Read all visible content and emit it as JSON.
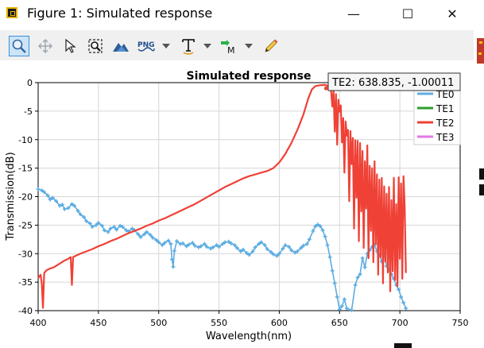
{
  "window": {
    "title": "Figure 1: Simulated response",
    "minimize_glyph": "—",
    "maximize_glyph": "☐",
    "close_glyph": "✕"
  },
  "toolbar": {
    "items": [
      {
        "name": "zoom-tool-button",
        "icon": "magnifier-icon",
        "active": true
      },
      {
        "name": "pan-tool-button",
        "icon": "move-arrows-icon",
        "active": false
      },
      {
        "name": "select-tool-button",
        "icon": "cursor-arrow-icon",
        "active": false
      },
      {
        "name": "zoom-fit-button",
        "icon": "zoom-fit-icon",
        "active": false
      },
      {
        "name": "chart-style-button",
        "icon": "mountain-chart-icon",
        "active": false
      },
      {
        "name": "export-png-button",
        "icon": "png-icon",
        "active": false
      },
      {
        "name": "text-annotation-button",
        "icon": "text-t-icon",
        "active": false
      },
      {
        "name": "marker-button",
        "icon": "marker-m-icon",
        "active": false
      },
      {
        "name": "draw-pen-button",
        "icon": "pencil-icon",
        "active": false
      }
    ],
    "png_label": "PNG",
    "marker_label": "M"
  },
  "chart_data": {
    "type": "line",
    "title": "Simulated response",
    "xlabel": "Wavelength(nm)",
    "ylabel": "Transmission(dB)",
    "xlim": [
      400,
      750
    ],
    "ylim": [
      -40,
      0
    ],
    "xticks": [
      400,
      450,
      500,
      550,
      600,
      650,
      700,
      750
    ],
    "yticks": [
      0,
      -5,
      -10,
      -15,
      -20,
      -25,
      -30,
      -35,
      -40
    ],
    "grid": true,
    "legend_position": "top-right",
    "series": [
      {
        "name": "TE0",
        "color": "#5dade2",
        "style": "markers",
        "points": [
          [
            400,
            -18.7
          ],
          [
            403,
            -18.9
          ],
          [
            405,
            -19.2
          ],
          [
            408,
            -19.8
          ],
          [
            410,
            -20.5
          ],
          [
            412,
            -20.2
          ],
          [
            415,
            -20.8
          ],
          [
            418,
            -21.6
          ],
          [
            420,
            -21.4
          ],
          [
            422,
            -22.2
          ],
          [
            425,
            -22.0
          ],
          [
            428,
            -21.3
          ],
          [
            430,
            -21.6
          ],
          [
            433,
            -22.5
          ],
          [
            435,
            -23.1
          ],
          [
            438,
            -23.6
          ],
          [
            440,
            -24.3
          ],
          [
            443,
            -24.7
          ],
          [
            445,
            -25.3
          ],
          [
            448,
            -25.0
          ],
          [
            450,
            -24.6
          ],
          [
            453,
            -25.1
          ],
          [
            455,
            -25.9
          ],
          [
            458,
            -26.2
          ],
          [
            460,
            -25.6
          ],
          [
            463,
            -25.3
          ],
          [
            465,
            -25.8
          ],
          [
            468,
            -25.1
          ],
          [
            470,
            -25.3
          ],
          [
            473,
            -25.9
          ],
          [
            475,
            -26.1
          ],
          [
            478,
            -25.6
          ],
          [
            480,
            -25.9
          ],
          [
            483,
            -26.6
          ],
          [
            485,
            -27.1
          ],
          [
            488,
            -26.6
          ],
          [
            490,
            -26.2
          ],
          [
            493,
            -26.7
          ],
          [
            495,
            -27.2
          ],
          [
            498,
            -27.6
          ],
          [
            500,
            -28.0
          ],
          [
            503,
            -28.5
          ],
          [
            505,
            -28.1
          ],
          [
            508,
            -27.7
          ],
          [
            510,
            -28.3
          ],
          [
            511,
            -31.0
          ],
          [
            512,
            -32.3
          ],
          [
            513,
            -29.5
          ],
          [
            515,
            -27.8
          ],
          [
            518,
            -28.3
          ],
          [
            520,
            -28.2
          ],
          [
            523,
            -28.7
          ],
          [
            525,
            -28.4
          ],
          [
            528,
            -28.1
          ],
          [
            530,
            -28.6
          ],
          [
            533,
            -28.9
          ],
          [
            535,
            -28.7
          ],
          [
            538,
            -28.3
          ],
          [
            540,
            -28.8
          ],
          [
            543,
            -29.1
          ],
          [
            545,
            -28.9
          ],
          [
            548,
            -28.5
          ],
          [
            550,
            -28.8
          ],
          [
            553,
            -28.3
          ],
          [
            555,
            -28.0
          ],
          [
            558,
            -27.9
          ],
          [
            560,
            -28.2
          ],
          [
            563,
            -28.5
          ],
          [
            565,
            -29.0
          ],
          [
            568,
            -29.6
          ],
          [
            570,
            -29.3
          ],
          [
            573,
            -29.9
          ],
          [
            575,
            -30.2
          ],
          [
            578,
            -29.6
          ],
          [
            580,
            -28.9
          ],
          [
            583,
            -28.3
          ],
          [
            585,
            -28.0
          ],
          [
            588,
            -28.5
          ],
          [
            590,
            -29.2
          ],
          [
            593,
            -29.7
          ],
          [
            595,
            -30.1
          ],
          [
            598,
            -30.4
          ],
          [
            600,
            -30.0
          ],
          [
            603,
            -29.1
          ],
          [
            605,
            -28.5
          ],
          [
            608,
            -28.8
          ],
          [
            610,
            -29.4
          ],
          [
            613,
            -29.8
          ],
          [
            615,
            -29.6
          ],
          [
            618,
            -29.0
          ],
          [
            620,
            -28.6
          ],
          [
            623,
            -28.3
          ],
          [
            625,
            -27.5
          ],
          [
            628,
            -26.0
          ],
          [
            630,
            -25.2
          ],
          [
            632,
            -24.9
          ],
          [
            634,
            -25.2
          ],
          [
            636,
            -25.9
          ],
          [
            638,
            -27.0
          ],
          [
            640,
            -28.5
          ],
          [
            642,
            -30.6
          ],
          [
            644,
            -33.0
          ],
          [
            646,
            -35.2
          ],
          [
            648,
            -37.6
          ],
          [
            650,
            -39.8
          ],
          [
            652,
            -39.2
          ],
          [
            654,
            -38.0
          ],
          [
            656,
            -39.6
          ],
          [
            660,
            -39.9
          ],
          [
            663,
            -35.5
          ],
          [
            665,
            -34.2
          ],
          [
            667,
            -33.6
          ],
          [
            669,
            -30.8
          ],
          [
            671,
            -32.4
          ],
          [
            673,
            -30.0
          ],
          [
            675,
            -29.4
          ],
          [
            677,
            -28.8
          ],
          [
            679,
            -28.5
          ],
          [
            681,
            -29.6
          ],
          [
            683,
            -30.2
          ],
          [
            685,
            -31.4
          ],
          [
            687,
            -30.1
          ],
          [
            689,
            -32.2
          ],
          [
            691,
            -32.8
          ],
          [
            693,
            -33.6
          ],
          [
            695,
            -34.4
          ],
          [
            697,
            -35.5
          ],
          [
            699,
            -36.3
          ],
          [
            701,
            -37.6
          ],
          [
            703,
            -38.6
          ],
          [
            705,
            -39.6
          ]
        ]
      },
      {
        "name": "TE1",
        "color": "#2ca02c",
        "style": "line",
        "points": []
      },
      {
        "name": "TE2",
        "color": "#ef4136",
        "style": "line",
        "points": [
          [
            400,
            -34.3
          ],
          [
            402,
            -33.7
          ],
          [
            403,
            -35.2
          ],
          [
            404,
            -39.5
          ],
          [
            405,
            -33.4
          ],
          [
            407,
            -32.9
          ],
          [
            410,
            -32.6
          ],
          [
            413,
            -32.4
          ],
          [
            416,
            -32.0
          ],
          [
            419,
            -31.6
          ],
          [
            422,
            -31.2
          ],
          [
            425,
            -30.9
          ],
          [
            427,
            -30.6
          ],
          [
            428,
            -35.5
          ],
          [
            429,
            -30.6
          ],
          [
            432,
            -30.3
          ],
          [
            435,
            -30.0
          ],
          [
            440,
            -29.6
          ],
          [
            445,
            -29.2
          ],
          [
            450,
            -28.7
          ],
          [
            455,
            -28.3
          ],
          [
            460,
            -27.8
          ],
          [
            465,
            -27.4
          ],
          [
            470,
            -26.9
          ],
          [
            475,
            -26.4
          ],
          [
            480,
            -26.0
          ],
          [
            485,
            -25.6
          ],
          [
            490,
            -25.1
          ],
          [
            495,
            -24.7
          ],
          [
            500,
            -24.2
          ],
          [
            505,
            -23.8
          ],
          [
            510,
            -23.3
          ],
          [
            515,
            -22.8
          ],
          [
            520,
            -22.3
          ],
          [
            525,
            -21.8
          ],
          [
            530,
            -21.3
          ],
          [
            535,
            -20.7
          ],
          [
            540,
            -20.1
          ],
          [
            545,
            -19.5
          ],
          [
            550,
            -18.9
          ],
          [
            555,
            -18.3
          ],
          [
            560,
            -17.8
          ],
          [
            565,
            -17.3
          ],
          [
            570,
            -16.8
          ],
          [
            575,
            -16.4
          ],
          [
            580,
            -16.1
          ],
          [
            585,
            -15.8
          ],
          [
            590,
            -15.5
          ],
          [
            595,
            -15.0
          ],
          [
            600,
            -14.0
          ],
          [
            605,
            -12.5
          ],
          [
            610,
            -10.6
          ],
          [
            615,
            -8.3
          ],
          [
            620,
            -5.6
          ],
          [
            624,
            -2.8
          ],
          [
            627,
            -1.2
          ],
          [
            630,
            -0.6
          ],
          [
            634,
            -0.45
          ],
          [
            638,
            -0.4
          ],
          [
            641,
            -0.6
          ],
          [
            643,
            -1.6
          ],
          [
            644,
            -4.2
          ],
          [
            645,
            -1.3
          ],
          [
            646,
            -8.6
          ],
          [
            647,
            -2.0
          ],
          [
            648,
            -10.9
          ],
          [
            649,
            -3.0
          ],
          [
            650,
            -5.1
          ],
          [
            651,
            -4.0
          ],
          [
            652,
            -10.5
          ],
          [
            653,
            -6.2
          ],
          [
            654,
            -15.8
          ],
          [
            655,
            -6.8
          ],
          [
            656,
            -9.3
          ],
          [
            657,
            -8.3
          ],
          [
            658,
            -20.8
          ],
          [
            659,
            -8.5
          ],
          [
            660,
            -14.3
          ],
          [
            661,
            -9.7
          ],
          [
            662,
            -25.6
          ],
          [
            663,
            -10.1
          ],
          [
            664,
            -20.2
          ],
          [
            665,
            -10.2
          ],
          [
            666,
            -27.8
          ],
          [
            667,
            -10.6
          ],
          [
            668,
            -22.6
          ],
          [
            669,
            -12.0
          ],
          [
            670,
            -29.0
          ],
          [
            671,
            -13.8
          ],
          [
            672,
            -22.1
          ],
          [
            673,
            -11.0
          ],
          [
            674,
            -30.8
          ],
          [
            675,
            -14.6
          ],
          [
            676,
            -26.0
          ],
          [
            677,
            -15.0
          ],
          [
            678,
            -31.5
          ],
          [
            679,
            -13.8
          ],
          [
            680,
            -28.3
          ],
          [
            681,
            -16.1
          ],
          [
            682,
            -33.7
          ],
          [
            683,
            -17.0
          ],
          [
            684,
            -30.6
          ],
          [
            685,
            -16.7
          ],
          [
            686,
            -35.2
          ],
          [
            687,
            -18.2
          ],
          [
            688,
            -31.4
          ],
          [
            689,
            -19.5
          ],
          [
            690,
            -33.3
          ],
          [
            691,
            -18.3
          ],
          [
            692,
            -36.6
          ],
          [
            693,
            -20.6
          ],
          [
            694,
            -33.1
          ],
          [
            695,
            -16.7
          ],
          [
            696,
            -34.6
          ],
          [
            697,
            -21.3
          ],
          [
            698,
            -35.7
          ],
          [
            699,
            -16.6
          ],
          [
            700,
            -30.9
          ],
          [
            701,
            -17.7
          ],
          [
            702,
            -34.4
          ],
          [
            703,
            -16.4
          ],
          [
            704,
            -21.8
          ],
          [
            705,
            -33.4
          ]
        ]
      },
      {
        "name": "TE3",
        "color": "#e377e9",
        "style": "line",
        "points": []
      }
    ],
    "tooltip": {
      "text": "TE2: 638.835, -1.00011",
      "series": "TE2",
      "x": 638.835,
      "y": -1.00011
    }
  }
}
